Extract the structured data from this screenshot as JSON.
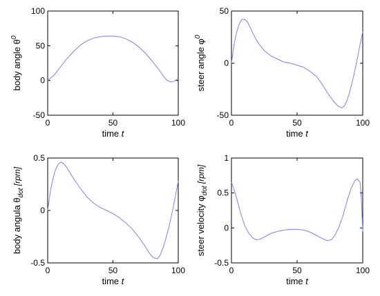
{
  "chart_data": [
    {
      "type": "line",
      "xlabel": {
        "text": "time ",
        "italic": "t"
      },
      "ylabel": {
        "text": "body angle θ",
        "super": "0",
        "sub": "",
        "unit": ""
      },
      "xlim": [
        0,
        100
      ],
      "ylim": [
        -50,
        100
      ],
      "xticks": [
        0,
        50,
        100
      ],
      "xtick_labels": [
        "0",
        "50",
        "100"
      ],
      "yticks": [
        -50,
        0,
        50,
        100
      ],
      "ytick_labels": [
        "-50",
        "0",
        "50",
        "100"
      ],
      "grid": false,
      "color": "#7f7fff",
      "series": [
        {
          "x": [
            0,
            5,
            10,
            15,
            20,
            25,
            30,
            35,
            40,
            45,
            50,
            55,
            60,
            65,
            70,
            75,
            80,
            85,
            88,
            91,
            94,
            97,
            100
          ],
          "y": [
            0,
            8,
            20,
            32,
            42,
            51,
            57,
            61,
            63,
            64,
            64,
            63,
            60,
            55,
            48,
            39,
            28,
            16,
            8,
            1,
            -2,
            -1,
            3
          ]
        }
      ]
    },
    {
      "type": "line",
      "xlabel": {
        "text": "time ",
        "italic": "t"
      },
      "ylabel": {
        "text": "steer angle φ",
        "super": "0",
        "sub": "",
        "unit": ""
      },
      "xlim": [
        0,
        100
      ],
      "ylim": [
        -50,
        50
      ],
      "xticks": [
        0,
        50,
        100
      ],
      "xtick_labels": [
        "0",
        "50",
        "100"
      ],
      "yticks": [
        -50,
        0,
        50
      ],
      "ytick_labels": [
        "-50",
        "0",
        "50"
      ],
      "grid": false,
      "color": "#7f7fff",
      "series": [
        {
          "x": [
            0,
            2,
            4,
            6,
            8,
            10,
            12,
            14,
            17,
            20,
            25,
            30,
            35,
            40,
            45,
            50,
            55,
            60,
            65,
            70,
            74,
            78,
            81,
            84,
            86,
            88,
            90,
            93,
            96,
            98,
            100
          ],
          "y": [
            0,
            18,
            30,
            38,
            42,
            42,
            40,
            35,
            27,
            20,
            12,
            7,
            4,
            1,
            0,
            -2,
            -4,
            -8,
            -13,
            -22,
            -30,
            -37,
            -41,
            -43,
            -41,
            -36,
            -28,
            -13,
            5,
            18,
            30
          ]
        }
      ]
    },
    {
      "type": "line",
      "xlabel": {
        "text": "time ",
        "italic": "t"
      },
      "ylabel": {
        "text": "body angula θ",
        "super": "",
        "sub": "dot",
        "unit": "[rpm]"
      },
      "xlim": [
        0,
        100
      ],
      "ylim": [
        -0.5,
        0.5
      ],
      "xticks": [
        0,
        50,
        100
      ],
      "xtick_labels": [
        "0",
        "50",
        "100"
      ],
      "yticks": [
        -0.5,
        0,
        0.5
      ],
      "ytick_labels": [
        "-0.5",
        "0",
        "0.5"
      ],
      "grid": false,
      "color": "#7f7fff",
      "series": [
        {
          "x": [
            0,
            2,
            4,
            6,
            8,
            10,
            12,
            14,
            17,
            20,
            25,
            30,
            35,
            40,
            45,
            50,
            55,
            60,
            65,
            70,
            74,
            78,
            81,
            84,
            86,
            88,
            90,
            93,
            96,
            98,
            100
          ],
          "y": [
            0,
            0.18,
            0.3,
            0.39,
            0.44,
            0.46,
            0.45,
            0.42,
            0.36,
            0.3,
            0.21,
            0.13,
            0.07,
            0.03,
            0.0,
            -0.03,
            -0.07,
            -0.12,
            -0.18,
            -0.26,
            -0.33,
            -0.41,
            -0.45,
            -0.46,
            -0.43,
            -0.37,
            -0.29,
            -0.15,
            0.02,
            0.15,
            0.28
          ]
        }
      ]
    },
    {
      "type": "line",
      "xlabel": {
        "text": "time ",
        "italic": "t"
      },
      "ylabel": {
        "text": "steer velocity φ",
        "super": "",
        "sub": "dot",
        "unit": "[rpm]"
      },
      "xlim": [
        0,
        100
      ],
      "ylim": [
        -0.5,
        1
      ],
      "xticks": [
        0,
        50,
        100
      ],
      "xtick_labels": [
        "0",
        "50",
        "100"
      ],
      "yticks": [
        -0.5,
        0,
        0.5,
        1
      ],
      "ytick_labels": [
        "-0.5",
        "0",
        "0.5",
        "1"
      ],
      "grid": false,
      "color": "#7f7fff",
      "series": [
        {
          "x": [
            0,
            2,
            4,
            6,
            8,
            10,
            13,
            16,
            19,
            22,
            26,
            30,
            35,
            40,
            45,
            50,
            55,
            60,
            65,
            70,
            73,
            76,
            79,
            82,
            85,
            88,
            91,
            94,
            96,
            98,
            99,
            100
          ],
          "y": [
            0.65,
            0.55,
            0.42,
            0.28,
            0.15,
            0.04,
            -0.07,
            -0.14,
            -0.17,
            -0.16,
            -0.12,
            -0.08,
            -0.05,
            -0.03,
            -0.02,
            -0.02,
            -0.03,
            -0.06,
            -0.11,
            -0.16,
            -0.18,
            -0.17,
            -0.1,
            0.02,
            0.18,
            0.38,
            0.56,
            0.68,
            0.7,
            0.65,
            0.4,
            -0.05
          ]
        }
      ]
    }
  ]
}
